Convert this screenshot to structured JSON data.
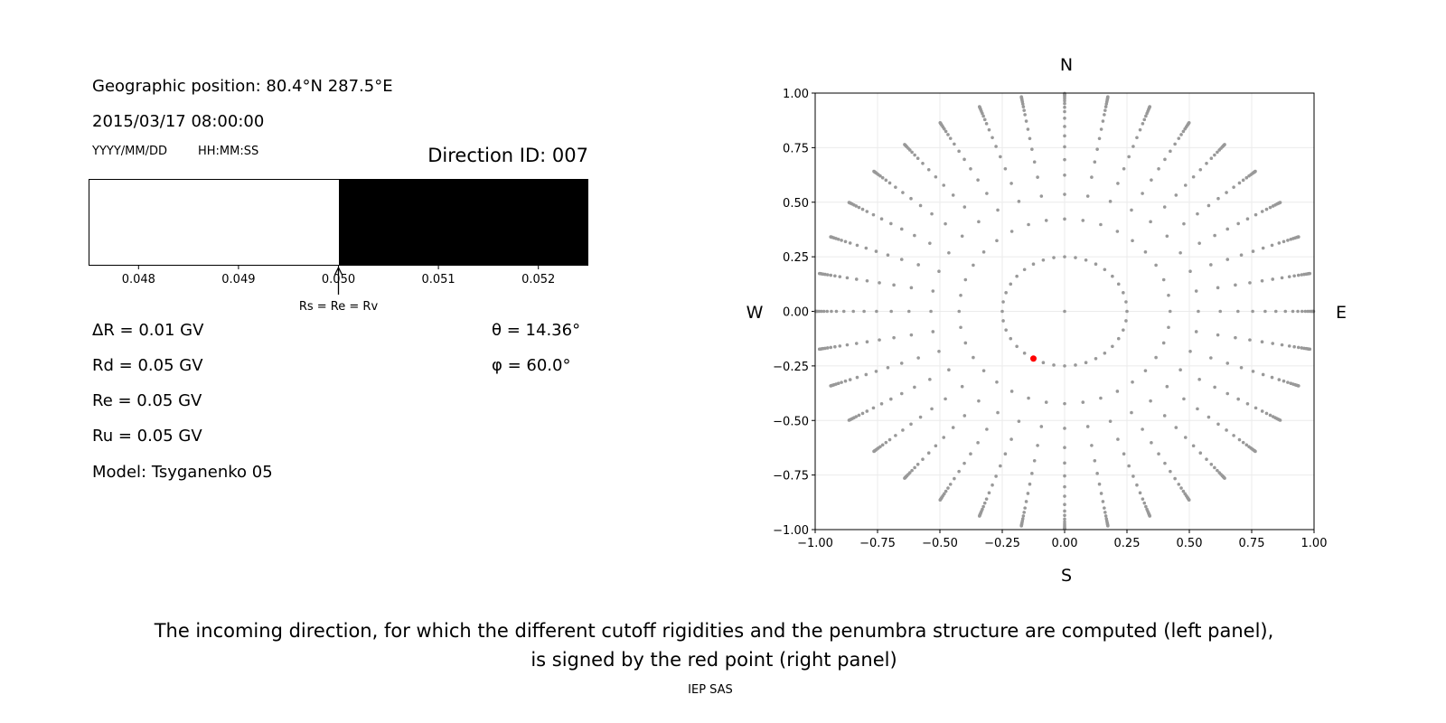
{
  "left_panel": {
    "geo_position": "Geographic position: 80.4°N 287.5°E",
    "datetime": "2015/03/17 08:00:00",
    "date_format": "YYYY/MM/DD",
    "time_format": "HH:MM:SS",
    "direction_id": "Direction ID: 007",
    "arrow_label": "Rs = Re = Rv",
    "params": {
      "dR": "ΔR = 0.01 GV",
      "Rd": "Rd = 0.05 GV",
      "Re": "Re = 0.05 GV",
      "Ru": "Ru = 0.05 GV",
      "model": "Model: Tsyganenko 05",
      "theta": "θ = 14.36°",
      "phi": "φ = 60.0°"
    }
  },
  "caption": {
    "line1": "The incoming direction, for which the different cutoff rigidities and the penumbra structure are computed (left panel),",
    "line2": "is signed by the red point (right panel)",
    "credit": "IEP SAS"
  },
  "chart_data": [
    {
      "type": "bar",
      "xlim": [
        0.0475,
        0.0525
      ],
      "xticks": [
        "0.048",
        "0.049",
        "0.050",
        "0.051",
        "0.052"
      ],
      "xtick_values": [
        0.048,
        0.049,
        0.05,
        0.051,
        0.052
      ],
      "segments": [
        {
          "from": 0.0475,
          "to": 0.05,
          "color": "#ffffff"
        },
        {
          "from": 0.05,
          "to": 0.0525,
          "color": "#000000"
        }
      ],
      "arrow_at": 0.05
    },
    {
      "type": "scatter",
      "xlim": [
        -1,
        1
      ],
      "ylim": [
        -1,
        1
      ],
      "grid": true,
      "xticks": [
        "−1.00",
        "−0.75",
        "−0.50",
        "−0.25",
        "0.00",
        "0.25",
        "0.50",
        "0.75",
        "1.00"
      ],
      "yticks": [
        "−1.00",
        "−0.75",
        "−0.50",
        "−0.25",
        "0.00",
        "0.25",
        "0.50",
        "0.75",
        "1.00"
      ],
      "tick_values": [
        -1,
        -0.75,
        -0.5,
        -0.25,
        0,
        0.25,
        0.5,
        0.75,
        1
      ],
      "compass": {
        "N": "N",
        "S": "S",
        "E": "E",
        "W": "W"
      },
      "grid_points": {
        "color": "#999999",
        "center": [
          0,
          0
        ],
        "azimuth_step_deg": 10,
        "ring_radii": [
          0.25,
          0.423,
          0.536,
          0.624,
          0.695,
          0.754,
          0.804,
          0.847,
          0.885,
          0.915,
          0.935,
          0.952,
          0.965,
          0.975,
          0.983,
          0.989,
          0.993,
          0.996,
          0.998
        ]
      },
      "selected_point": {
        "x": -0.125,
        "y": -0.2165,
        "color": "#ff0000"
      }
    }
  ]
}
